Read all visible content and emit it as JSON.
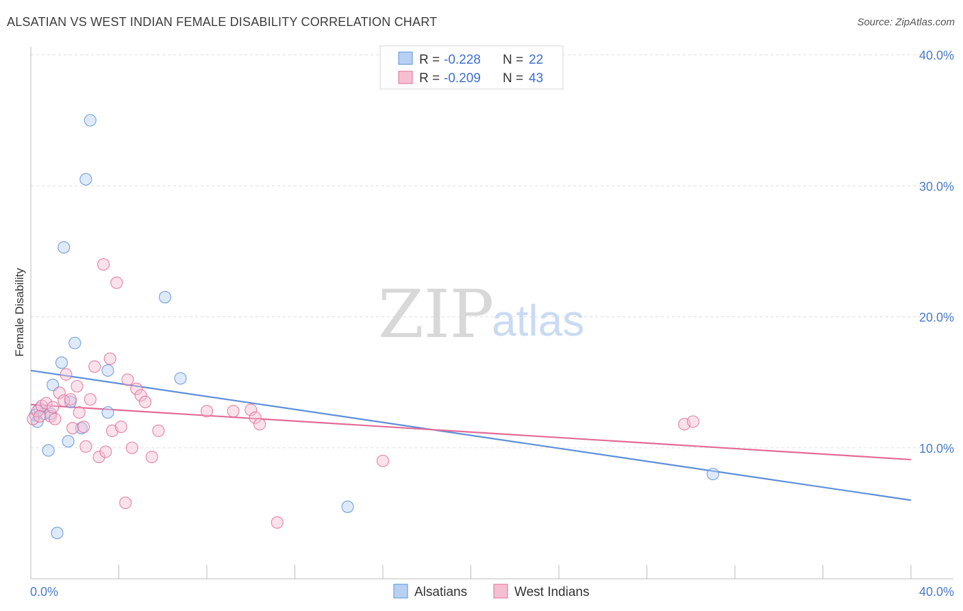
{
  "chart_data": {
    "type": "scatter",
    "title": "ALSATIAN VS WEST INDIAN FEMALE DISABILITY CORRELATION CHART",
    "source": "Source: ZipAtlas.com",
    "xlabel": "",
    "ylabel": "Female Disability",
    "xlim": [
      0,
      40
    ],
    "ylim": [
      0,
      40
    ],
    "x_tick_labels": [
      "0.0%",
      "40.0%"
    ],
    "y_ticks": [
      10,
      20,
      30,
      40
    ],
    "y_tick_labels": [
      "10.0%",
      "20.0%",
      "30.0%",
      "40.0%"
    ],
    "watermark": {
      "zip": "ZIP",
      "atlas": "atlas"
    },
    "legend_stats": [
      {
        "r_label": "R =",
        "r_value": "-0.228",
        "n_label": "N =",
        "n_value": "22"
      },
      {
        "r_label": "R =",
        "r_value": "-0.209",
        "n_label": "N =",
        "n_value": "43"
      }
    ],
    "series": [
      {
        "name": "Alsatians",
        "color": "#5b8fd9",
        "fill": "#b8d0f2",
        "trend": {
          "x": [
            0,
            40
          ],
          "y": [
            15.9,
            6.0
          ]
        },
        "points": [
          [
            0.2,
            12.5
          ],
          [
            0.4,
            13.0
          ],
          [
            0.6,
            12.6
          ],
          [
            0.8,
            9.8
          ],
          [
            0.9,
            12.6
          ],
          [
            1.0,
            14.8
          ],
          [
            1.2,
            3.5
          ],
          [
            1.4,
            16.5
          ],
          [
            1.5,
            25.3
          ],
          [
            1.7,
            10.5
          ],
          [
            1.8,
            13.5
          ],
          [
            2.0,
            18.0
          ],
          [
            2.3,
            11.5
          ],
          [
            2.5,
            30.5
          ],
          [
            2.7,
            35.0
          ],
          [
            3.5,
            12.7
          ],
          [
            3.5,
            15.9
          ],
          [
            6.1,
            21.5
          ],
          [
            6.8,
            15.3
          ],
          [
            14.4,
            5.5
          ],
          [
            31.0,
            8.0
          ],
          [
            0.3,
            12.0
          ]
        ]
      },
      {
        "name": "West Indians",
        "color": "#e36b97",
        "fill": "#f5bfd2",
        "trend": {
          "x": [
            0,
            40
          ],
          "y": [
            13.3,
            9.1
          ]
        },
        "points": [
          [
            0.1,
            12.2
          ],
          [
            0.3,
            12.8
          ],
          [
            0.5,
            13.2
          ],
          [
            0.7,
            13.4
          ],
          [
            0.9,
            12.4
          ],
          [
            1.1,
            12.2
          ],
          [
            1.3,
            14.2
          ],
          [
            1.5,
            13.6
          ],
          [
            1.6,
            15.6
          ],
          [
            1.8,
            13.7
          ],
          [
            1.9,
            11.5
          ],
          [
            2.1,
            14.7
          ],
          [
            2.2,
            12.7
          ],
          [
            2.4,
            11.6
          ],
          [
            2.5,
            10.1
          ],
          [
            2.7,
            13.7
          ],
          [
            2.9,
            16.2
          ],
          [
            3.1,
            9.3
          ],
          [
            3.3,
            24.0
          ],
          [
            3.4,
            9.7
          ],
          [
            3.6,
            16.8
          ],
          [
            3.7,
            11.3
          ],
          [
            3.9,
            22.6
          ],
          [
            4.1,
            11.6
          ],
          [
            4.3,
            5.8
          ],
          [
            4.4,
            15.2
          ],
          [
            4.6,
            10.0
          ],
          [
            4.8,
            14.5
          ],
          [
            5.0,
            14.0
          ],
          [
            5.2,
            13.5
          ],
          [
            5.5,
            9.3
          ],
          [
            5.8,
            11.3
          ],
          [
            8.0,
            12.8
          ],
          [
            9.2,
            12.8
          ],
          [
            10.0,
            12.9
          ],
          [
            10.2,
            12.3
          ],
          [
            10.4,
            11.8
          ],
          [
            11.2,
            4.3
          ],
          [
            16.0,
            9.0
          ],
          [
            29.7,
            11.8
          ],
          [
            30.1,
            12.0
          ],
          [
            1.0,
            13.1
          ],
          [
            0.4,
            12.4
          ]
        ]
      }
    ]
  }
}
